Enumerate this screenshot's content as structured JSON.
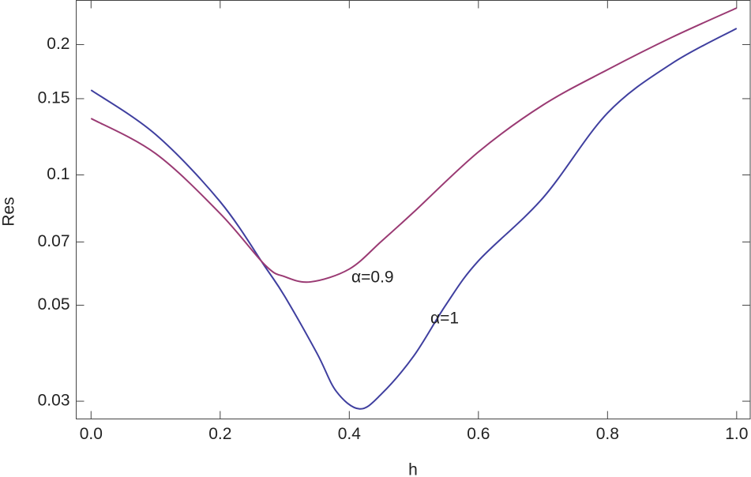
{
  "chart_data": {
    "type": "line",
    "x_label": "h",
    "y_label": "Res",
    "x": [
      0.0,
      0.1,
      0.2,
      0.27,
      0.3,
      0.34,
      0.35,
      0.38,
      0.4,
      0.416,
      0.45,
      0.5,
      0.55,
      0.6,
      0.7,
      0.8,
      0.9,
      1.0
    ],
    "series": [
      {
        "name": "α=1",
        "color": "#3f3f9f",
        "values": [
          0.157,
          0.124,
          0.0867,
          0.0612,
          0.0524,
          null,
          0.0387,
          0.0316,
          null,
          0.0288,
          0.0312,
          0.0382,
          0.0502,
          0.0633,
          0.0885,
          0.139,
          0.181,
          0.218
        ]
      },
      {
        "name": "α=0.9",
        "color": "#9a3a73",
        "values": [
          0.135,
          0.112,
          0.0814,
          0.0618,
          0.0582,
          0.0566,
          null,
          null,
          0.0606,
          null,
          0.0703,
          0.0821,
          null,
          0.113,
          0.145,
          0.175,
          0.208,
          0.243
        ]
      }
    ],
    "xlim": [
      -0.023,
      1.021
    ],
    "xticks": [
      {
        "value": 0,
        "label": "0.0"
      },
      0.2,
      0.4,
      0.6,
      0.8,
      {
        "value": 1,
        "label": "1.0"
      }
    ],
    "ylim": [
      0.0273,
      0.253
    ],
    "y_scale": "log",
    "yticks": [
      0.03,
      0.05,
      0.07,
      0.1,
      0.15,
      0.2
    ]
  }
}
